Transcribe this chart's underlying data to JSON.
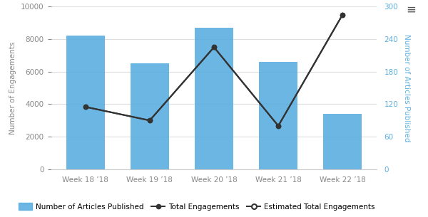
{
  "categories": [
    "Week 18 ’18",
    "Week 19 ’18",
    "Week 20 ’18",
    "Week 21 ’18",
    "Week 22 ’18"
  ],
  "bar_values": [
    8200,
    6500,
    8700,
    6600,
    3400
  ],
  "total_engagements": [
    115,
    90,
    225,
    80,
    285
  ],
  "estimated_engagements": [
    115,
    90,
    225,
    80,
    285
  ],
  "bar_color": "#5BAEE0",
  "line_color": "#333333",
  "left_ylabel": "Number of Engagements",
  "right_ylabel": "Number of Articles Published",
  "left_ylim": [
    0,
    10000
  ],
  "right_ylim": [
    0,
    300
  ],
  "left_yticks": [
    0,
    2000,
    4000,
    6000,
    8000,
    10000
  ],
  "right_yticks": [
    0,
    60,
    120,
    180,
    240,
    300
  ],
  "right_ylabel_color": "#5BAEE0",
  "legend_labels": [
    "Number of Articles Published",
    "Total Engagements",
    "Estimated Total Engagements"
  ],
  "background_color": "#ffffff",
  "grid_color": "#dddddd",
  "axis_label_color": "#888888",
  "tick_label_color": "#888888",
  "right_spine_color": "#cccccc",
  "bottom_spine_color": "#cccccc"
}
